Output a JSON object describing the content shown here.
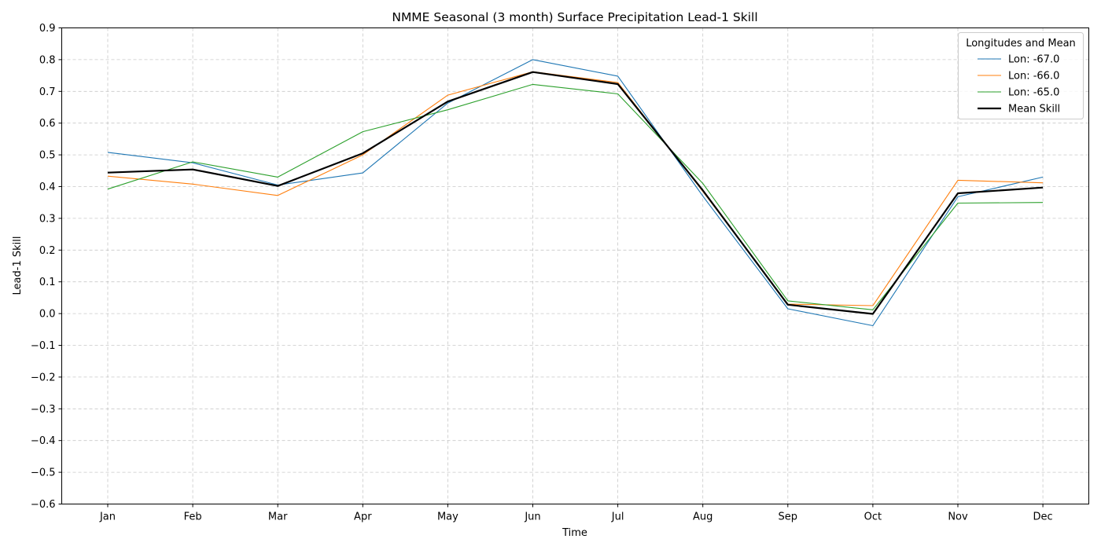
{
  "chart_data": {
    "type": "line",
    "title": "NMME Seasonal (3 month) Surface Precipitation Lead-1 Skill",
    "xlabel": "Time",
    "ylabel": "Lead-1 Skill",
    "categories": [
      "Jan",
      "Feb",
      "Mar",
      "Apr",
      "May",
      "Jun",
      "Jul",
      "Aug",
      "Sep",
      "Oct",
      "Nov",
      "Dec"
    ],
    "ylim": [
      -0.6,
      0.9
    ],
    "yticks": [
      -0.6,
      -0.5,
      -0.4,
      -0.3,
      -0.2,
      -0.1,
      0.0,
      0.1,
      0.2,
      0.3,
      0.4,
      0.5,
      0.6,
      0.7,
      0.8,
      0.9
    ],
    "ytick_labels": [
      "−0.6",
      "−0.5",
      "−0.4",
      "−0.3",
      "−0.2",
      "−0.1",
      "0.0",
      "0.1",
      "0.2",
      "0.3",
      "0.4",
      "0.5",
      "0.6",
      "0.7",
      "0.8",
      "0.9"
    ],
    "grid": true,
    "legend": {
      "title": "Longitudes and Mean",
      "placement": "top-right"
    },
    "series": [
      {
        "name": "Lon: -67.0",
        "color": "#1f77b4",
        "style": "thin",
        "values": [
          0.508,
          0.475,
          0.405,
          0.443,
          0.663,
          0.8,
          0.748,
          0.37,
          0.015,
          -0.038,
          0.368,
          0.43
        ]
      },
      {
        "name": "Lon: -66.0",
        "color": "#ff7f0e",
        "style": "thin",
        "values": [
          0.433,
          0.408,
          0.372,
          0.5,
          0.688,
          0.762,
          0.728,
          0.385,
          0.03,
          0.025,
          0.42,
          0.412
        ]
      },
      {
        "name": "Lon: -65.0",
        "color": "#2ca02c",
        "style": "thin",
        "values": [
          0.392,
          0.478,
          0.43,
          0.573,
          0.642,
          0.722,
          0.692,
          0.41,
          0.04,
          0.012,
          0.348,
          0.35
        ]
      },
      {
        "name": "Mean Skill",
        "color": "#000000",
        "style": "thick",
        "values": [
          0.444,
          0.454,
          0.402,
          0.505,
          0.668,
          0.761,
          0.723,
          0.388,
          0.028,
          -0.001,
          0.379,
          0.397
        ]
      }
    ]
  }
}
